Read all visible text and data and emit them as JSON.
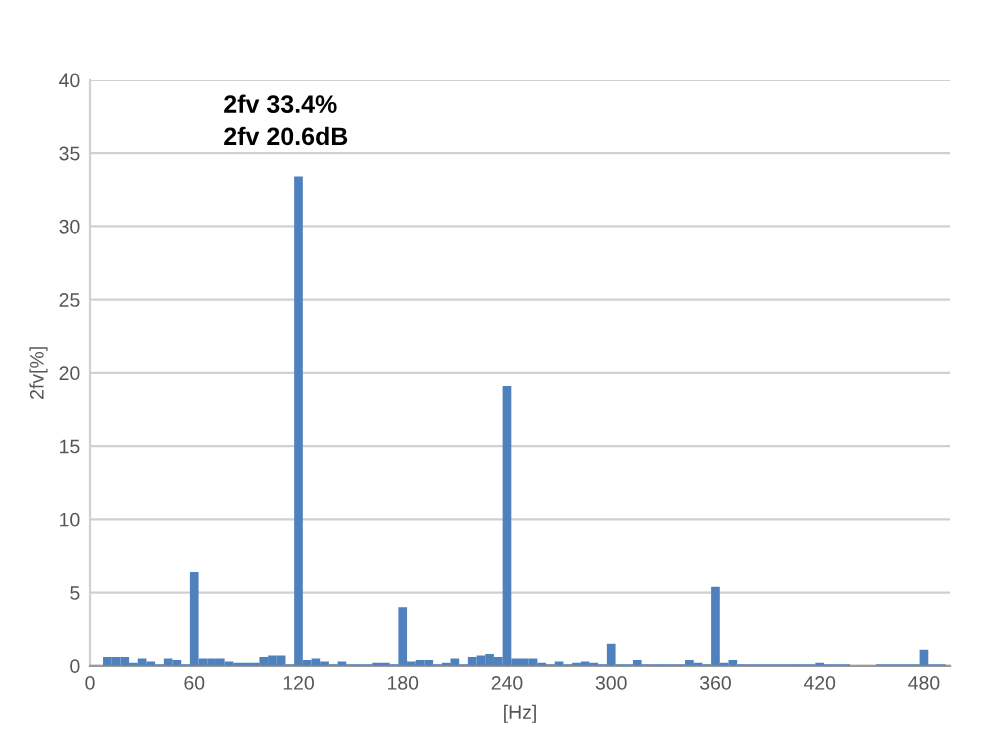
{
  "chart_data": {
    "type": "bar",
    "xlabel": "[Hz]",
    "ylabel": "2fv[%]",
    "annotations": [
      "2fv 33.4%",
      "2fv 20.6dB"
    ],
    "x": [
      10,
      15,
      20,
      25,
      30,
      35,
      40,
      45,
      50,
      55,
      60,
      65,
      70,
      75,
      80,
      85,
      90,
      95,
      100,
      105,
      110,
      115,
      120,
      125,
      130,
      135,
      140,
      145,
      150,
      155,
      160,
      165,
      170,
      175,
      180,
      185,
      190,
      195,
      200,
      205,
      210,
      215,
      220,
      225,
      230,
      235,
      240,
      245,
      250,
      255,
      260,
      265,
      270,
      275,
      280,
      285,
      290,
      295,
      300,
      305,
      310,
      315,
      320,
      325,
      330,
      335,
      340,
      345,
      350,
      355,
      360,
      365,
      370,
      375,
      380,
      385,
      390,
      395,
      400,
      405,
      410,
      415,
      420,
      425,
      430,
      435,
      440,
      445,
      450,
      455,
      460,
      465,
      470,
      475,
      480,
      485,
      490
    ],
    "values": [
      0.6,
      0.6,
      0.6,
      0.2,
      0.5,
      0.3,
      0.1,
      0.5,
      0.4,
      0.1,
      6.4,
      0.5,
      0.5,
      0.5,
      0.3,
      0.2,
      0.2,
      0.2,
      0.6,
      0.7,
      0.7,
      0.1,
      33.4,
      0.4,
      0.5,
      0.3,
      0.1,
      0.3,
      0.1,
      0.1,
      0.1,
      0.2,
      0.2,
      0.1,
      4.0,
      0.3,
      0.4,
      0.4,
      0.1,
      0.2,
      0.5,
      0.1,
      0.6,
      0.7,
      0.8,
      0.6,
      19.1,
      0.5,
      0.5,
      0.5,
      0.2,
      0.1,
      0.3,
      0.1,
      0.2,
      0.3,
      0.2,
      0.1,
      1.5,
      0.1,
      0.1,
      0.4,
      0.1,
      0.1,
      0.1,
      0.1,
      0.1,
      0.4,
      0.2,
      0.1,
      5.4,
      0.2,
      0.4,
      0.1,
      0.1,
      0.1,
      0.1,
      0.1,
      0.1,
      0.1,
      0.1,
      0.1,
      0.2,
      0.1,
      0.1,
      0.1,
      0,
      0,
      0,
      0.1,
      0.1,
      0.1,
      0.1,
      0.1,
      1.1,
      0.1,
      0.1
    ],
    "color": "#4f81bd",
    "xlim": [
      0,
      495
    ],
    "ylim": [
      0,
      40
    ],
    "xticks": [
      0,
      60,
      120,
      180,
      240,
      300,
      360,
      420,
      480
    ],
    "yticks": [
      0,
      5,
      10,
      15,
      20,
      25,
      30,
      35,
      40
    ],
    "grid": "y"
  }
}
